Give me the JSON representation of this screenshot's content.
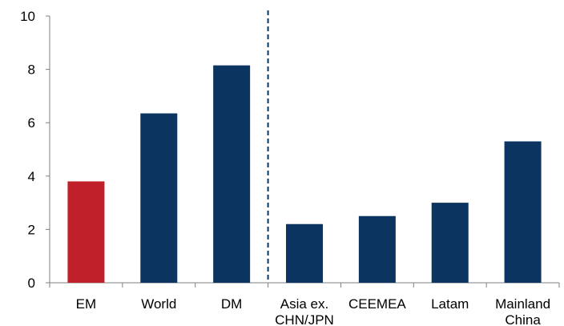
{
  "chart_data": {
    "type": "bar",
    "categories": [
      [
        "EM"
      ],
      [
        "World"
      ],
      [
        "DM"
      ],
      [
        "Asia ex.",
        "CHN/JPN"
      ],
      [
        "CEEMEA"
      ],
      [
        "Latam"
      ],
      [
        "Mainland",
        "China"
      ]
    ],
    "values": [
      3.8,
      6.35,
      8.15,
      2.2,
      2.5,
      3.0,
      5.3
    ],
    "bar_colors": [
      "#c0202a",
      "#0b3560",
      "#0b3560",
      "#0b3560",
      "#0b3560",
      "#0b3560",
      "#0b3560"
    ],
    "title": "",
    "xlabel": "",
    "ylabel": "",
    "ylim": [
      0,
      10
    ],
    "yticks": [
      "0",
      "2",
      "4",
      "6",
      "8",
      "10"
    ],
    "grid": false,
    "legend": "none",
    "separator_after_category_index": 2,
    "axis_color": "#7f7f7f",
    "separator_color": "#0b3560"
  }
}
